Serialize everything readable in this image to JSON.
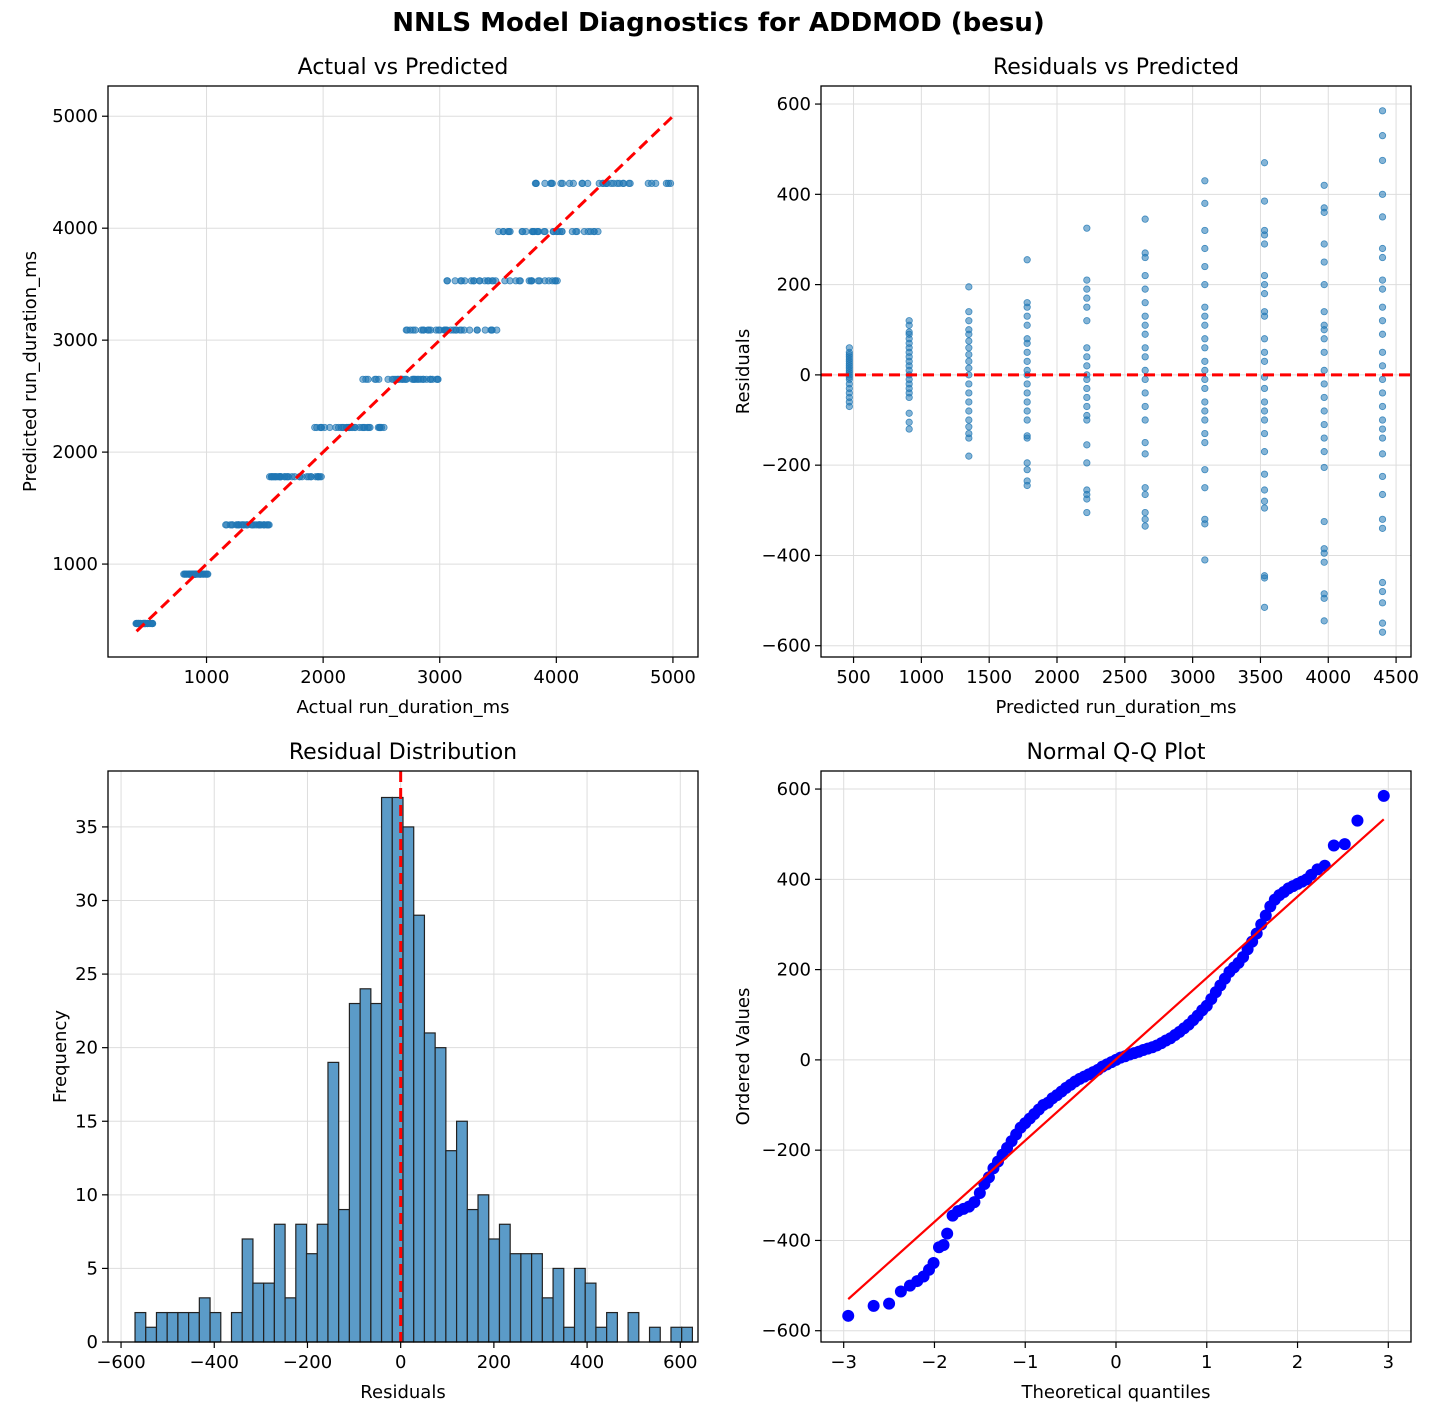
{
  "figure": {
    "title": "NNLS Model Diagnostics for ADDMOD (besu)",
    "colors": {
      "scatter": "#1f77b4",
      "hist_fill": "#5b9bc8",
      "hist_edge": "#222222",
      "ref_line": "#ff0000",
      "qq_points": "#0000ff",
      "grid": "#dddddd"
    }
  },
  "chart_data": [
    {
      "id": "actual_vs_pred",
      "type": "scatter",
      "title": "Actual vs Predicted",
      "xlabel": "Actual run_duration_ms",
      "ylabel": "Predicted run_duration_ms",
      "xlim": [
        155,
        5215
      ],
      "ylim": [
        170,
        5270
      ],
      "xticks": [
        1000,
        2000,
        3000,
        4000,
        5000
      ],
      "yticks": [
        1000,
        2000,
        3000,
        4000,
        5000
      ],
      "reference_line": {
        "x": [
          400,
          5000
        ],
        "y": [
          400,
          5000
        ],
        "style": "dashed"
      },
      "clusters": [
        {
          "predicted": 469,
          "actual_min": 385,
          "actual_max": 540
        },
        {
          "predicted": 910,
          "actual_min": 790,
          "actual_max": 1020
        },
        {
          "predicted": 1350,
          "actual_min": 1160,
          "actual_max": 1540
        },
        {
          "predicted": 1780,
          "actual_min": 1540,
          "actual_max": 2030
        },
        {
          "predicted": 2220,
          "actual_min": 1920,
          "actual_max": 2540
        },
        {
          "predicted": 2650,
          "actual_min": 2320,
          "actual_max": 2990
        },
        {
          "predicted": 3090,
          "actual_min": 2680,
          "actual_max": 3520
        },
        {
          "predicted": 3530,
          "actual_min": 3020,
          "actual_max": 4040
        },
        {
          "predicted": 3970,
          "actual_min": 3440,
          "actual_max": 4390
        },
        {
          "predicted": 4400,
          "actual_min": 3820,
          "actual_max": 4985
        }
      ]
    },
    {
      "id": "resid_vs_pred",
      "type": "scatter",
      "title": "Residuals vs Predicted",
      "xlabel": "Predicted run_duration_ms",
      "ylabel": "Residuals",
      "xlim": [
        260,
        4610
      ],
      "ylim": [
        -625,
        640
      ],
      "xticks": [
        500,
        1000,
        1500,
        2000,
        2500,
        3000,
        3500,
        4000,
        4500
      ],
      "yticks": [
        -600,
        -400,
        -200,
        0,
        200,
        400,
        600
      ],
      "reference_line": {
        "y": 0,
        "style": "dashed"
      },
      "groups": [
        {
          "predicted": 469,
          "residuals": [
            -70,
            -60,
            -50,
            -40,
            -30,
            -20,
            -10,
            -5,
            0,
            5,
            10,
            15,
            20,
            25,
            30,
            35,
            40,
            45,
            50,
            60
          ]
        },
        {
          "predicted": 910,
          "residuals": [
            -120,
            -105,
            -85,
            -50,
            -40,
            -30,
            -20,
            -10,
            0,
            10,
            20,
            30,
            40,
            50,
            60,
            70,
            80,
            90,
            95,
            110,
            120
          ]
        },
        {
          "predicted": 1350,
          "residuals": [
            -180,
            -140,
            -130,
            -115,
            -100,
            -80,
            -60,
            -40,
            -20,
            0,
            15,
            30,
            45,
            60,
            75,
            90,
            100,
            120,
            140,
            195
          ]
        },
        {
          "predicted": 1780,
          "residuals": [
            -245,
            -235,
            -210,
            -195,
            -140,
            -135,
            -100,
            -80,
            -60,
            -40,
            -20,
            0,
            10,
            30,
            50,
            70,
            80,
            110,
            130,
            150,
            160,
            255
          ]
        },
        {
          "predicted": 2220,
          "residuals": [
            -305,
            -275,
            -265,
            -255,
            -195,
            -155,
            -100,
            -90,
            -70,
            -50,
            -30,
            -10,
            0,
            20,
            40,
            60,
            120,
            150,
            170,
            190,
            210,
            325
          ]
        },
        {
          "predicted": 2650,
          "residuals": [
            -335,
            -320,
            -305,
            -265,
            -250,
            -175,
            -150,
            -100,
            -70,
            -40,
            -10,
            10,
            40,
            60,
            90,
            110,
            130,
            160,
            190,
            220,
            260,
            270,
            345
          ]
        },
        {
          "predicted": 3090,
          "residuals": [
            -410,
            -330,
            -320,
            -250,
            -210,
            -150,
            -130,
            -100,
            -80,
            -60,
            -30,
            -10,
            10,
            30,
            60,
            80,
            110,
            130,
            150,
            200,
            240,
            280,
            320,
            380,
            430
          ]
        },
        {
          "predicted": 3530,
          "residuals": [
            -515,
            -450,
            -445,
            -295,
            -280,
            -255,
            -220,
            -170,
            -130,
            -100,
            -80,
            -60,
            -30,
            -5,
            30,
            50,
            80,
            130,
            140,
            180,
            200,
            220,
            290,
            310,
            320,
            385,
            470
          ]
        },
        {
          "predicted": 3970,
          "residuals": [
            -545,
            -495,
            -485,
            -415,
            -395,
            -385,
            -325,
            -205,
            -170,
            -140,
            -110,
            -80,
            -50,
            -20,
            10,
            50,
            80,
            100,
            110,
            140,
            200,
            250,
            290,
            360,
            370,
            420
          ]
        },
        {
          "predicted": 4400,
          "residuals": [
            -570,
            -550,
            -505,
            -480,
            -460,
            -340,
            -320,
            -265,
            -225,
            -175,
            -140,
            -120,
            -100,
            -70,
            -40,
            -10,
            20,
            50,
            90,
            120,
            150,
            190,
            210,
            260,
            280,
            350,
            400,
            475,
            530,
            585
          ]
        }
      ]
    },
    {
      "id": "resid_hist",
      "type": "bar",
      "title": "Residual Distribution",
      "xlabel": "Residuals",
      "ylabel": "Frequency",
      "xlim": [
        -628,
        638
      ],
      "ylim": [
        0,
        38.8
      ],
      "xticks": [
        -600,
        -400,
        -200,
        0,
        200,
        400,
        600
      ],
      "yticks": [
        0,
        5,
        10,
        15,
        20,
        25,
        30,
        35
      ],
      "bin_start": -570,
      "bin_width": 23,
      "counts": [
        2,
        1,
        2,
        2,
        2,
        2,
        3,
        2,
        0,
        2,
        7,
        4,
        4,
        8,
        3,
        8,
        6,
        8,
        19,
        9,
        23,
        24,
        23,
        37,
        37,
        35,
        29,
        21,
        20,
        13,
        15,
        9,
        10,
        7,
        8,
        6,
        6,
        6,
        3,
        5,
        1,
        5,
        4,
        1,
        2,
        0,
        2,
        0,
        1,
        0,
        1,
        1
      ],
      "reference_line": {
        "x": 0,
        "style": "dashed"
      }
    },
    {
      "id": "qq_plot",
      "type": "scatter",
      "title": "Normal Q-Q Plot",
      "xlabel": "Theoretical quantiles",
      "ylabel": "Ordered Values",
      "xlim": [
        -3.25,
        3.25
      ],
      "ylim": [
        -625,
        640
      ],
      "xticks": [
        -3,
        -2,
        -1,
        0,
        1,
        2,
        3
      ],
      "yticks": [
        -600,
        -400,
        -200,
        0,
        200,
        400,
        600
      ],
      "fit_line": {
        "x": [
          -2.95,
          2.95
        ],
        "y": [
          -530,
          533
        ]
      },
      "quantile_points": [
        [
          -2.95,
          -567
        ],
        [
          -2.67,
          -545
        ],
        [
          -2.5,
          -540
        ],
        [
          -2.37,
          -513
        ],
        [
          -2.27,
          -500
        ],
        [
          -2.19,
          -490
        ],
        [
          -2.12,
          -480
        ],
        [
          -2.06,
          -465
        ],
        [
          -2.01,
          -450
        ],
        [
          -1.95,
          -415
        ],
        [
          -1.9,
          -410
        ],
        [
          -1.86,
          -385
        ],
        [
          -1.8,
          -345
        ],
        [
          -1.74,
          -335
        ],
        [
          -1.68,
          -330
        ],
        [
          -1.62,
          -325
        ],
        [
          -1.56,
          -315
        ],
        [
          -1.5,
          -295
        ],
        [
          -1.45,
          -275
        ],
        [
          -1.4,
          -260
        ],
        [
          -1.35,
          -240
        ],
        [
          -1.3,
          -225
        ],
        [
          -1.25,
          -210
        ],
        [
          -1.2,
          -195
        ],
        [
          -1.15,
          -180
        ],
        [
          -1.1,
          -165
        ],
        [
          -1.05,
          -150
        ],
        [
          -1.0,
          -140
        ],
        [
          -0.95,
          -130
        ],
        [
          -0.9,
          -120
        ],
        [
          -0.85,
          -110
        ],
        [
          -0.8,
          -100
        ],
        [
          -0.75,
          -95
        ],
        [
          -0.7,
          -85
        ],
        [
          -0.65,
          -78
        ],
        [
          -0.6,
          -70
        ],
        [
          -0.55,
          -62
        ],
        [
          -0.5,
          -55
        ],
        [
          -0.45,
          -48
        ],
        [
          -0.4,
          -42
        ],
        [
          -0.35,
          -37
        ],
        [
          -0.3,
          -32
        ],
        [
          -0.25,
          -27
        ],
        [
          -0.2,
          -22
        ],
        [
          -0.15,
          -15
        ],
        [
          -0.1,
          -10
        ],
        [
          -0.05,
          -5
        ],
        [
          0.0,
          0
        ],
        [
          0.05,
          5
        ],
        [
          0.1,
          8
        ],
        [
          0.15,
          12
        ],
        [
          0.2,
          15
        ],
        [
          0.25,
          18
        ],
        [
          0.3,
          22
        ],
        [
          0.35,
          25
        ],
        [
          0.4,
          28
        ],
        [
          0.45,
          32
        ],
        [
          0.5,
          37
        ],
        [
          0.55,
          43
        ],
        [
          0.6,
          48
        ],
        [
          0.65,
          55
        ],
        [
          0.7,
          62
        ],
        [
          0.75,
          70
        ],
        [
          0.8,
          78
        ],
        [
          0.85,
          88
        ],
        [
          0.9,
          98
        ],
        [
          0.95,
          110
        ],
        [
          1.0,
          120
        ],
        [
          1.05,
          135
        ],
        [
          1.1,
          150
        ],
        [
          1.15,
          165
        ],
        [
          1.2,
          180
        ],
        [
          1.25,
          195
        ],
        [
          1.3,
          205
        ],
        [
          1.35,
          215
        ],
        [
          1.4,
          228
        ],
        [
          1.45,
          245
        ],
        [
          1.5,
          262
        ],
        [
          1.55,
          280
        ],
        [
          1.6,
          300
        ],
        [
          1.65,
          320
        ],
        [
          1.7,
          340
        ],
        [
          1.75,
          355
        ],
        [
          1.8,
          365
        ],
        [
          1.85,
          372
        ],
        [
          1.9,
          380
        ],
        [
          1.95,
          385
        ],
        [
          2.0,
          390
        ],
        [
          2.05,
          395
        ],
        [
          2.1,
          400
        ],
        [
          2.15,
          410
        ],
        [
          2.22,
          422
        ],
        [
          2.3,
          430
        ],
        [
          2.4,
          475
        ],
        [
          2.52,
          478
        ],
        [
          2.66,
          530
        ],
        [
          2.95,
          585
        ]
      ]
    }
  ]
}
